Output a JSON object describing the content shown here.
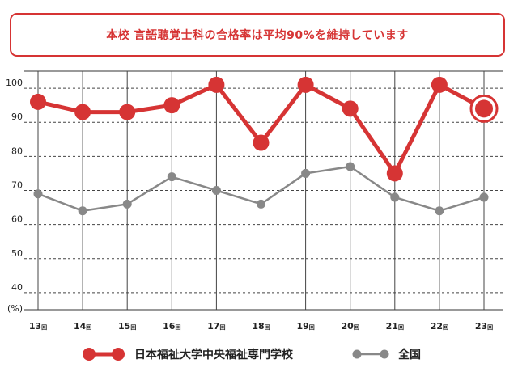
{
  "banner": {
    "text": "本校 言語聴覚士科の合格率は平均90%を維持しています"
  },
  "chart_data": {
    "type": "line",
    "categories": [
      "13",
      "14",
      "15",
      "16",
      "17",
      "18",
      "19",
      "20",
      "21",
      "22",
      "23"
    ],
    "category_suffix": "回",
    "y_unit_label": "(%)",
    "ylim": [
      35,
      105
    ],
    "yticks": [
      40,
      50,
      60,
      70,
      80,
      90,
      100
    ],
    "grid": true,
    "series": [
      {
        "name": "日本福祉大学中央福祉専門学校",
        "color": "#d63434",
        "values": [
          96,
          93,
          93,
          95,
          101,
          84,
          101,
          94,
          75,
          101,
          94
        ]
      },
      {
        "name": "全国",
        "color": "#888888",
        "values": [
          69,
          64,
          66,
          74,
          70,
          66,
          75,
          77,
          68,
          64,
          68
        ]
      }
    ]
  }
}
